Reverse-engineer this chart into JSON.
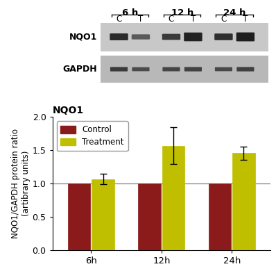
{
  "groups": [
    "6h",
    "12h",
    "24h"
  ],
  "control_values": [
    1.0,
    1.0,
    1.0
  ],
  "treatment_values": [
    1.07,
    1.57,
    1.46
  ],
  "control_errors": [
    0.0,
    0.0,
    0.0
  ],
  "treatment_errors": [
    0.08,
    0.28,
    0.1
  ],
  "control_color": "#8B1A1A",
  "treatment_color": "#BFBF00",
  "ylabel": "NQO1/GAPDH protein ratio\n(artibrary units)",
  "chart_title": "NQO1",
  "ylim": [
    0.0,
    2.0
  ],
  "yticks": [
    0.0,
    0.5,
    1.0,
    1.5,
    2.0
  ],
  "hline_y": 1.0,
  "bar_width": 0.32,
  "legend_control": "Control",
  "legend_treatment": "Treatment",
  "blot_label_nqo1": "NQO1",
  "blot_label_gapdh": "GAPDH",
  "blot_bg_color": "#C8C8C8",
  "blot_bg_color2": "#B8B8B8",
  "blot_white_sep": "#FFFFFF",
  "band_dark": "#3A3A3A",
  "band_medium": "#555555",
  "band_light": "#707070"
}
